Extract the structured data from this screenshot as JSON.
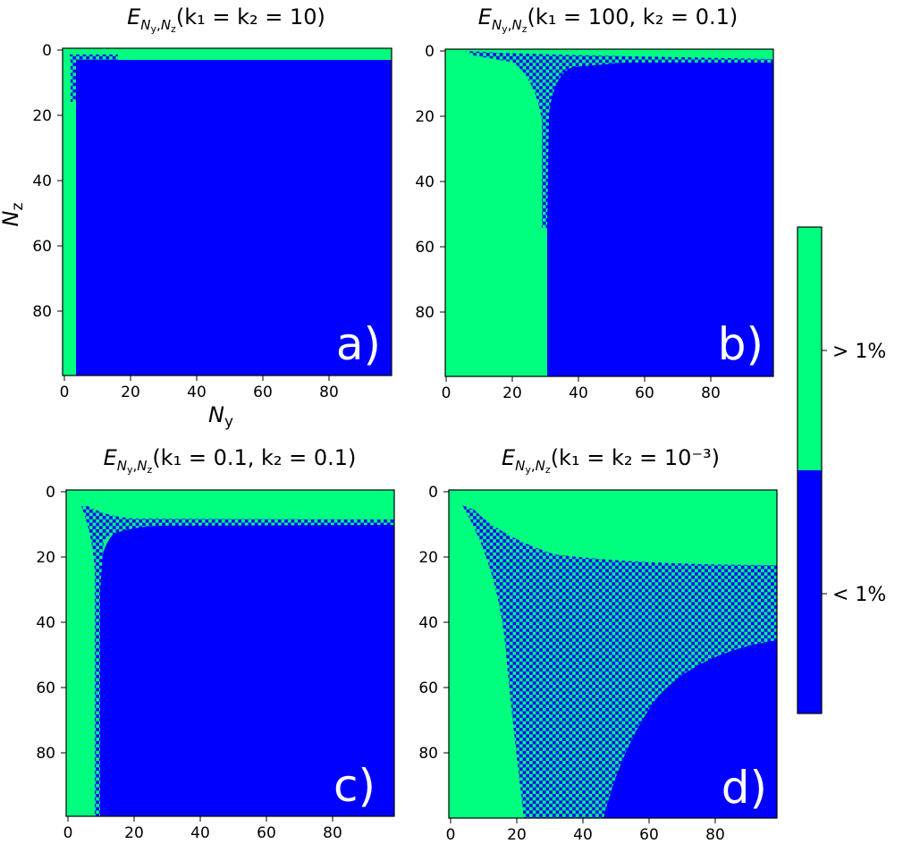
{
  "colors": {
    "above": "#00ff7f",
    "below": "#0000ff",
    "axis": "#000000"
  },
  "chart_data": [
    {
      "type": "heatmap",
      "title_main": "E",
      "title_sub": "N",
      "title_subsub_y": "y",
      "title_comma": ",",
      "title_subsub_z": "z",
      "title_params": "(k₁ = k₂ = 10)",
      "panel_label": "a)",
      "xlabel_main": "N",
      "xlabel_sub": "y",
      "ylabel_main": "N",
      "ylabel_sub": "z",
      "grid": false,
      "xlim": [
        0,
        99
      ],
      "ylim": [
        99,
        0
      ],
      "x_ticks": [
        0,
        20,
        40,
        60,
        80
      ],
      "y_ticks": [
        0,
        20,
        40,
        60,
        80
      ],
      "boundary": {
        "col_edge": 3,
        "row_edge": 3,
        "checker_x": [
          3,
          17
        ],
        "checker_y": [
          3,
          17
        ]
      }
    },
    {
      "type": "heatmap",
      "title_main": "E",
      "title_sub": "N",
      "title_subsub_y": "y",
      "title_comma": ",",
      "title_subsub_z": "z",
      "title_params": "(k₁ = 100, k₂ = 0.1)",
      "panel_label": "b)",
      "xlabel_main": "",
      "xlabel_sub": "",
      "ylabel_main": "",
      "ylabel_sub": "",
      "grid": false,
      "xlim": [
        0,
        99
      ],
      "ylim": [
        99,
        0
      ],
      "x_ticks": [
        0,
        20,
        40,
        60,
        80
      ],
      "y_ticks": [
        0,
        20,
        40,
        60,
        80
      ],
      "boundary": {
        "col_edge": 31,
        "row_edge": 3,
        "checker_x": [
          3,
          99
        ],
        "checker_y": [
          1,
          54
        ]
      }
    },
    {
      "type": "heatmap",
      "title_main": "E",
      "title_sub": "N",
      "title_subsub_y": "y",
      "title_comma": ",",
      "title_subsub_z": "z",
      "title_params": "(k₁ = 0.1, k₂ = 0.1)",
      "panel_label": "c)",
      "xlabel_main": "",
      "xlabel_sub": "",
      "ylabel_main": "",
      "ylabel_sub": "",
      "grid": false,
      "xlim": [
        0,
        99
      ],
      "ylim": [
        99,
        0
      ],
      "x_ticks": [
        0,
        20,
        40,
        60,
        80
      ],
      "y_ticks": [
        0,
        20,
        40,
        60,
        80
      ],
      "boundary": {
        "col_edge": 9,
        "row_edge": 9,
        "checker_x": [
          4,
          99
        ],
        "checker_y": [
          4,
          99
        ]
      }
    },
    {
      "type": "heatmap",
      "title_main": "E",
      "title_sub": "N",
      "title_subsub_y": "y",
      "title_comma": ",",
      "title_subsub_z": "z",
      "title_params": "(k₁ = k₂ = 10⁻³)",
      "panel_label": "d)",
      "xlabel_main": "",
      "xlabel_sub": "",
      "ylabel_main": "",
      "ylabel_sub": "",
      "grid": false,
      "xlim": [
        0,
        99
      ],
      "ylim": [
        99,
        0
      ],
      "x_ticks": [
        0,
        20,
        40,
        60,
        80
      ],
      "y_ticks": [
        0,
        20,
        40,
        60,
        80
      ],
      "boundary": {
        "col_edge": 23,
        "row_edge": 23,
        "checker_x": [
          4,
          99
        ],
        "checker_y": [
          4,
          99
        ]
      }
    }
  ],
  "colorbar": {
    "categories": [
      "< 1%",
      "> 1%"
    ],
    "colors": [
      "#0000ff",
      "#00ff7f"
    ]
  }
}
